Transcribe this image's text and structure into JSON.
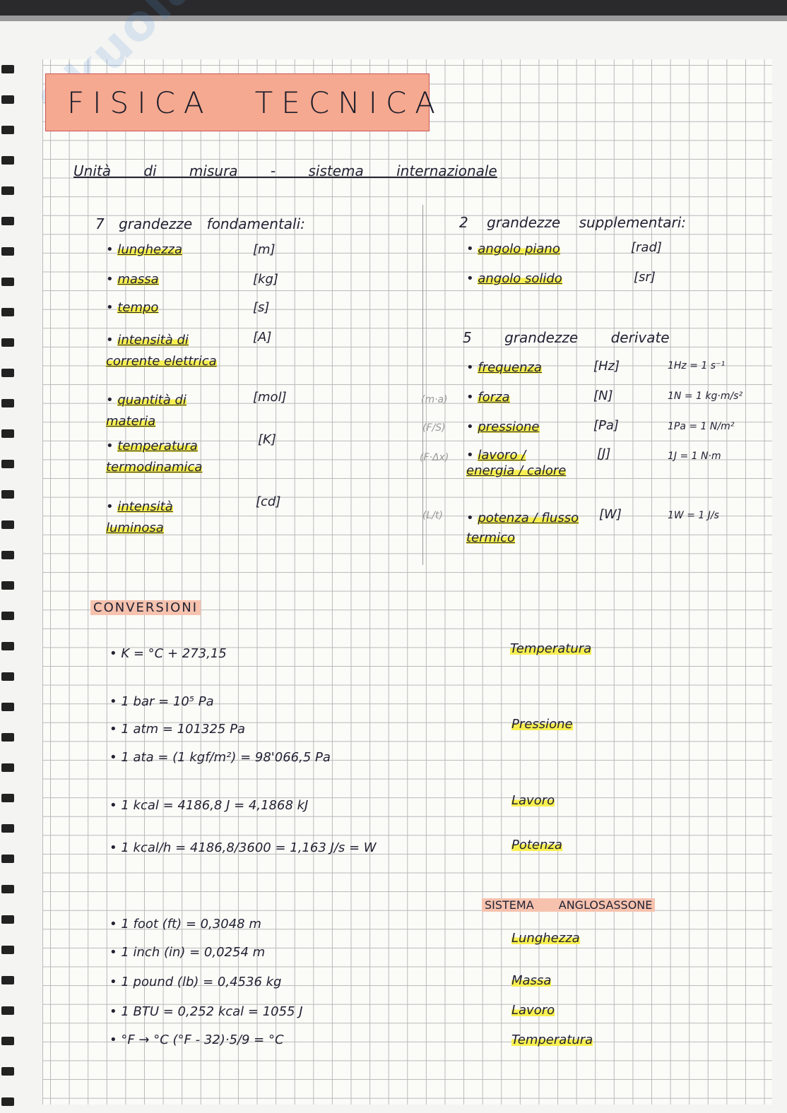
{
  "watermark": "Skuola.net",
  "title": [
    "FISICA",
    "TECNICA"
  ],
  "heading": "Unità di misura - sistema internazionale",
  "fundamental": {
    "header": "7 grandezze fondamentali:",
    "items": [
      {
        "name": "lunghezza",
        "unit": "[m]"
      },
      {
        "name": "massa",
        "unit": "[kg]"
      },
      {
        "name": "tempo",
        "unit": "[s]"
      },
      {
        "name": "intensità di corrente elettrica",
        "unit": "[A]"
      },
      {
        "name": "quantità di materia",
        "unit": "[mol]"
      },
      {
        "name": "temperatura termodinamica",
        "unit": "[K]"
      },
      {
        "name": "intensità luminosa",
        "unit": "[cd]"
      }
    ]
  },
  "supplementary": {
    "header": "2 grandezze supplementari:",
    "items": [
      {
        "name": "angolo piano",
        "unit": "[rad]"
      },
      {
        "name": "angolo solido",
        "unit": "[sr]"
      }
    ]
  },
  "derived": {
    "header": "5 grandezze derivate",
    "items": [
      {
        "note": "",
        "name": "frequenza",
        "unit": "[Hz]",
        "def": "1Hz = 1 s⁻¹"
      },
      {
        "note": "(m·a)",
        "name": "forza",
        "unit": "[N]",
        "def": "1N = 1 kg·m/s²"
      },
      {
        "note": "(F/S)",
        "name": "pressione",
        "unit": "[Pa]",
        "def": "1Pa = 1 N/m²"
      },
      {
        "note": "(F·Δx)",
        "name": "lavoro / energia / calore",
        "unit": "[J]",
        "def": "1J = 1 N·m"
      },
      {
        "note": "(L/t)",
        "name": "potenza / flusso termico",
        "unit": "[W]",
        "def": "1W = 1 J/s"
      }
    ]
  },
  "conversions": {
    "header": "CONVERSIONI",
    "items": [
      {
        "text": "K = °C + 273,15",
        "label": "Temperatura"
      },
      {
        "text": "1 bar = 10⁵ Pa",
        "label": ""
      },
      {
        "text": "1 atm = 101325 Pa",
        "label": "Pressione"
      },
      {
        "text": "1 ata = (1 kgf/m²) = 98'066,5 Pa",
        "label": ""
      },
      {
        "text": "1 kcal = 4186,8 J = 4,1868 kJ",
        "label": "Lavoro"
      },
      {
        "text": "1 kcal/h = 4186,8/3600 = 1,163 J/s = W",
        "label": "Potenza"
      }
    ]
  },
  "anglo": {
    "header": "SISTEMA ANGLOSASSONE",
    "items": [
      {
        "text": "1 foot (ft) = 0,3048 m",
        "label": "Lunghezza"
      },
      {
        "text": "1 inch (in) = 0,0254 m",
        "label": ""
      },
      {
        "text": "1 pound (lb) = 0,4536 kg",
        "label": "Massa"
      },
      {
        "text": "1 BTU = 0,252 kcal = 1055 J",
        "label": "Lavoro"
      },
      {
        "text": "°F → °C      (°F - 32)·5/9 = °C",
        "label": "Temperatura"
      }
    ]
  }
}
